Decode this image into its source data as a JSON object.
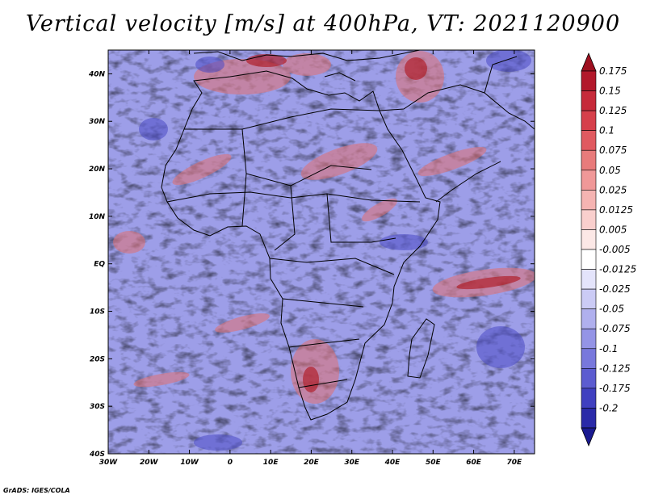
{
  "title": "Vertical velocity [m/s] at 400hPa, VT: 2021120900",
  "credit": "GrADS: IGES/COLA",
  "map": {
    "lon_range": [
      -30,
      75
    ],
    "lat_range": [
      -40,
      45
    ],
    "lon_ticks": [
      {
        "value": -30,
        "label": "30W"
      },
      {
        "value": -20,
        "label": "20W"
      },
      {
        "value": -10,
        "label": "10W"
      },
      {
        "value": 0,
        "label": "0"
      },
      {
        "value": 10,
        "label": "10E"
      },
      {
        "value": 20,
        "label": "20E"
      },
      {
        "value": 30,
        "label": "30E"
      },
      {
        "value": 40,
        "label": "40E"
      },
      {
        "value": 50,
        "label": "50E"
      },
      {
        "value": 60,
        "label": "60E"
      },
      {
        "value": 70,
        "label": "70E"
      }
    ],
    "lat_ticks": [
      {
        "value": 40,
        "label": "40N"
      },
      {
        "value": 30,
        "label": "30N"
      },
      {
        "value": 20,
        "label": "20N"
      },
      {
        "value": 10,
        "label": "10N"
      },
      {
        "value": 0,
        "label": "EQ"
      },
      {
        "value": -10,
        "label": "10S"
      },
      {
        "value": -20,
        "label": "20S"
      },
      {
        "value": -30,
        "label": "30S"
      },
      {
        "value": -40,
        "label": "40S"
      }
    ]
  },
  "colorbar": {
    "entries": [
      {
        "label": "0.175",
        "color": "#b2182b"
      },
      {
        "label": "0.15",
        "color": "#c62a3a"
      },
      {
        "label": "0.125",
        "color": "#d6404b"
      },
      {
        "label": "0.1",
        "color": "#e05a60"
      },
      {
        "label": "0.075",
        "color": "#e87b7b"
      },
      {
        "label": "0.05",
        "color": "#f09898"
      },
      {
        "label": "0.025",
        "color": "#f5b4b2"
      },
      {
        "label": "0.0125",
        "color": "#f9cfcd"
      },
      {
        "label": "0.005",
        "color": "#fce8e6"
      },
      {
        "label": "-0.005",
        "color": "#ffffff"
      },
      {
        "label": "-0.0125",
        "color": "#e4e4fb"
      },
      {
        "label": "-0.025",
        "color": "#cbcbf5"
      },
      {
        "label": "-0.05",
        "color": "#b0b0ee"
      },
      {
        "label": "-0.075",
        "color": "#9494e6"
      },
      {
        "label": "-0.1",
        "color": "#7878dc"
      },
      {
        "label": "-0.125",
        "color": "#5c5cd0"
      },
      {
        "label": "-0.175",
        "color": "#4040c0"
      },
      {
        "label": "-0.2",
        "color": "#2a2aa8"
      }
    ],
    "top_arrow_color": "#9e1020",
    "bottom_arrow_color": "#1a1a90"
  }
}
